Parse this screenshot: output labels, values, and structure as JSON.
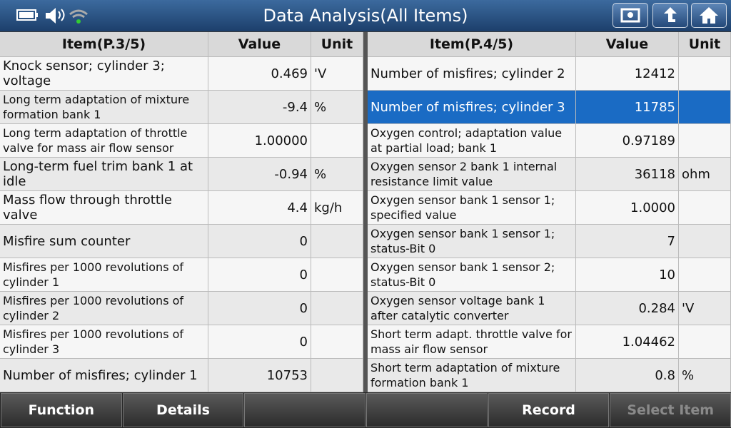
{
  "header": {
    "title": "Data Analysis(All Items)"
  },
  "tables": [
    {
      "columns": [
        "Item(P.3/5)",
        "Value",
        "Unit"
      ],
      "rows": [
        {
          "item": "Knock sensor; cylinder 3; voltage",
          "value": "0.469",
          "unit": "'V"
        },
        {
          "item": "Long term adaptation of mixture formation bank 1",
          "value": "-9.4",
          "unit": "%"
        },
        {
          "item": "Long term adaptation of throttle valve for mass air flow sensor",
          "value": "1.00000"
        },
        {
          "item": "Long-term fuel trim bank 1 at idle",
          "value": "-0.94",
          "unit": "%"
        },
        {
          "item": "Mass flow through throttle valve",
          "value": "4.4",
          "unit": "kg/h"
        },
        {
          "item": "Misfire sum counter",
          "value": "0"
        },
        {
          "item": "Misfires per 1000 revolutions of cylinder 1",
          "value": "0"
        },
        {
          "item": "Misfires per 1000 revolutions of cylinder 2",
          "value": "0"
        },
        {
          "item": "Misfires per 1000 revolutions of cylinder 3",
          "value": "0"
        },
        {
          "item": "Number of misfires; cylinder 1",
          "value": "10753"
        }
      ]
    },
    {
      "columns": [
        "Item(P.4/5)",
        "Value",
        "Unit"
      ],
      "rows": [
        {
          "item": "Number of misfires; cylinder 2",
          "value": "12412"
        },
        {
          "item": "Number of misfires; cylinder 3",
          "value": "11785",
          "selected": true
        },
        {
          "item": "Oxygen control; adaptation value at partial load; bank 1",
          "value": "0.97189"
        },
        {
          "item": "Oxygen sensor 2 bank 1 internal resistance limit value",
          "value": "36118",
          "unit": "ohm"
        },
        {
          "item": "Oxygen sensor bank 1 sensor 1; specified value",
          "value": "1.0000"
        },
        {
          "item": "Oxygen sensor bank 1 sensor 1; status-Bit 0",
          "value": "7"
        },
        {
          "item": "Oxygen sensor bank 1 sensor 2; status-Bit 0",
          "value": "10"
        },
        {
          "item": "Oxygen sensor voltage bank 1 after catalytic converter",
          "value": "0.284",
          "unit": "'V"
        },
        {
          "item": "Short term adapt. throttle valve for mass air flow sensor",
          "value": "1.04462"
        },
        {
          "item": "Short term adaptation of mixture formation bank 1",
          "value": "0.8",
          "unit": "%"
        }
      ]
    }
  ],
  "buttons": [
    "Function",
    "Details",
    "Record",
    "Select Item"
  ]
}
